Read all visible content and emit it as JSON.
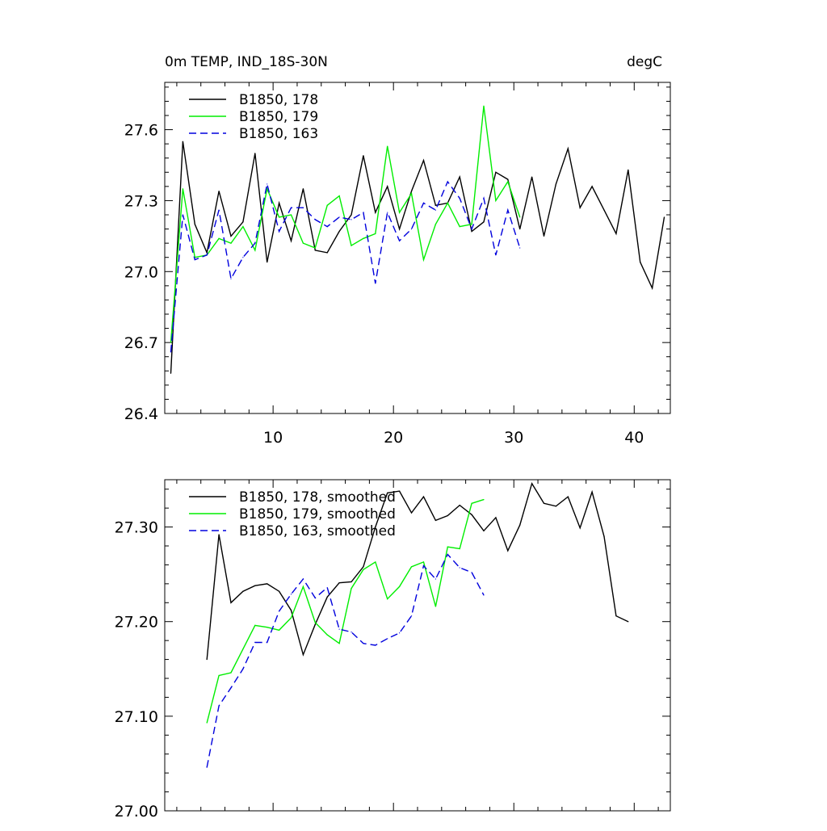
{
  "header": {
    "title": "0m TEMP, IND_18S-30N",
    "units": "degC"
  },
  "colors": {
    "s178": "#000000",
    "s179": "#00ee00",
    "s163": "#0000dd"
  },
  "chart_data": [
    {
      "type": "line",
      "xlim": [
        1,
        43
      ],
      "ylim": [
        26.4,
        27.8
      ],
      "xticks": [
        10,
        20,
        30,
        40
      ],
      "yticks": [
        26.4,
        26.7,
        27.0,
        27.3,
        27.6
      ],
      "ytick_labels": [
        "26.4",
        "26.7",
        "27.0",
        "27.3",
        "27.6"
      ],
      "xtick_labels": [
        "10",
        "20",
        "30",
        "40"
      ],
      "legend": "top-left",
      "grid": false,
      "series": [
        {
          "name": "B1850, 178",
          "color_key": "s178",
          "dash": "none",
          "x": [
            1.5,
            2.5,
            3.5,
            4.5,
            5.5,
            6.5,
            7.5,
            8.5,
            9.5,
            10.5,
            11.5,
            12.5,
            13.5,
            14.5,
            15.5,
            16.5,
            17.5,
            18.5,
            19.5,
            20.5,
            21.5,
            22.5,
            23.5,
            24.5,
            25.5,
            26.5,
            27.5,
            28.5,
            29.5,
            30.5,
            31.5,
            32.5,
            33.5,
            34.5,
            35.5,
            36.5,
            37.5,
            38.5,
            39.5,
            40.5,
            41.5,
            42.5
          ],
          "y": [
            26.57,
            27.55,
            27.2,
            27.08,
            27.34,
            27.15,
            27.21,
            27.5,
            27.04,
            27.29,
            27.13,
            27.35,
            27.09,
            27.08,
            27.17,
            27.24,
            27.49,
            27.25,
            27.36,
            27.18,
            27.34,
            27.47,
            27.28,
            27.29,
            27.4,
            27.17,
            27.21,
            27.42,
            27.39,
            27.18,
            27.4,
            27.15,
            27.37,
            27.52,
            27.27,
            27.36,
            27.26,
            27.16,
            27.43,
            27.04,
            26.93,
            27.23
          ]
        },
        {
          "name": "B1850, 179",
          "color_key": "s179",
          "dash": "none",
          "x": [
            1.5,
            2.5,
            3.5,
            4.5,
            5.5,
            6.5,
            7.5,
            8.5,
            9.5,
            10.5,
            11.5,
            12.5,
            13.5,
            14.5,
            15.5,
            16.5,
            17.5,
            18.5,
            19.5,
            20.5,
            21.5,
            22.5,
            23.5,
            24.5,
            25.5,
            26.5,
            27.5,
            28.5,
            29.5,
            30.5
          ],
          "y": [
            26.7,
            27.35,
            27.06,
            27.07,
            27.14,
            27.12,
            27.19,
            27.09,
            27.35,
            27.23,
            27.24,
            27.12,
            27.1,
            27.28,
            27.32,
            27.11,
            27.14,
            27.16,
            27.53,
            27.25,
            27.33,
            27.05,
            27.2,
            27.29,
            27.19,
            27.2,
            27.7,
            27.3,
            27.38,
            27.23
          ]
        },
        {
          "name": "B1850, 163",
          "color_key": "s163",
          "dash": "dashed",
          "x": [
            1.5,
            2.5,
            3.5,
            4.5,
            5.5,
            6.5,
            7.5,
            8.5,
            9.5,
            10.5,
            11.5,
            12.5,
            13.5,
            14.5,
            15.5,
            16.5,
            17.5,
            18.5,
            19.5,
            20.5,
            21.5,
            22.5,
            23.5,
            24.5,
            25.5,
            26.5,
            27.5,
            28.5,
            29.5,
            30.5
          ],
          "y": [
            26.66,
            27.24,
            27.05,
            27.07,
            27.26,
            26.97,
            27.06,
            27.12,
            27.37,
            27.17,
            27.27,
            27.27,
            27.22,
            27.19,
            27.23,
            27.22,
            27.25,
            26.95,
            27.25,
            27.13,
            27.18,
            27.29,
            27.26,
            27.38,
            27.31,
            27.18,
            27.31,
            27.07,
            27.26,
            27.1
          ]
        }
      ]
    },
    {
      "type": "line",
      "xlim": [
        1,
        43
      ],
      "ylim": [
        27.0,
        27.35
      ],
      "xticks": [
        10,
        20,
        30,
        40
      ],
      "yticks": [
        27.0,
        27.1,
        27.2,
        27.3
      ],
      "ytick_labels": [
        "27.00",
        "27.10",
        "27.20",
        "27.30"
      ],
      "legend": "top-left",
      "grid": false,
      "series": [
        {
          "name": "B1850, 178, smoothed",
          "color_key": "s178",
          "dash": "none",
          "x": [
            4.5,
            5.5,
            6.5,
            7.5,
            8.5,
            9.5,
            10.5,
            11.5,
            12.5,
            13.5,
            14.5,
            15.5,
            16.5,
            17.5,
            18.5,
            19.5,
            20.5,
            21.5,
            22.5,
            23.5,
            24.5,
            25.5,
            26.5,
            27.5,
            28.5,
            29.5,
            30.5,
            31.5,
            32.5,
            33.5,
            34.5,
            35.5,
            36.5,
            37.5,
            38.5,
            39.5
          ],
          "y": [
            27.16,
            27.292,
            27.22,
            27.232,
            27.238,
            27.24,
            27.232,
            27.212,
            27.165,
            27.197,
            27.226,
            27.241,
            27.242,
            27.258,
            27.3,
            27.336,
            27.338,
            27.315,
            27.332,
            27.307,
            27.312,
            27.323,
            27.313,
            27.296,
            27.31,
            27.275,
            27.302,
            27.346,
            27.325,
            27.322,
            27.332,
            27.299,
            27.337,
            27.29,
            27.206,
            27.2
          ]
        },
        {
          "name": "B1850, 179, smoothed",
          "color_key": "s179",
          "dash": "none",
          "x": [
            4.5,
            5.5,
            6.5,
            7.5,
            8.5,
            9.5,
            10.5,
            11.5,
            12.5,
            13.5,
            14.5,
            15.5,
            16.5,
            17.5,
            18.5,
            19.5,
            20.5,
            21.5,
            22.5,
            23.5,
            24.5,
            25.5,
            26.5,
            27.5
          ],
          "y": [
            27.093,
            27.143,
            27.146,
            27.171,
            27.196,
            27.194,
            27.191,
            27.204,
            27.237,
            27.199,
            27.186,
            27.177,
            27.235,
            27.255,
            27.263,
            27.224,
            27.237,
            27.258,
            27.263,
            27.216,
            27.279,
            27.277,
            27.325,
            27.329
          ]
        },
        {
          "name": "B1850, 163, smoothed",
          "color_key": "s163",
          "dash": "dashed",
          "x": [
            4.5,
            5.5,
            6.5,
            7.5,
            8.5,
            9.5,
            10.5,
            11.5,
            12.5,
            13.5,
            14.5,
            15.5,
            16.5,
            17.5,
            18.5,
            19.5,
            20.5,
            21.5,
            22.5,
            23.5,
            24.5,
            25.5,
            26.5,
            27.5
          ],
          "y": [
            27.046,
            27.111,
            27.13,
            27.15,
            27.178,
            27.178,
            27.211,
            27.229,
            27.245,
            27.225,
            27.236,
            27.192,
            27.189,
            27.177,
            27.175,
            27.182,
            27.188,
            27.206,
            27.259,
            27.245,
            27.271,
            27.257,
            27.252,
            27.228
          ]
        }
      ]
    }
  ]
}
